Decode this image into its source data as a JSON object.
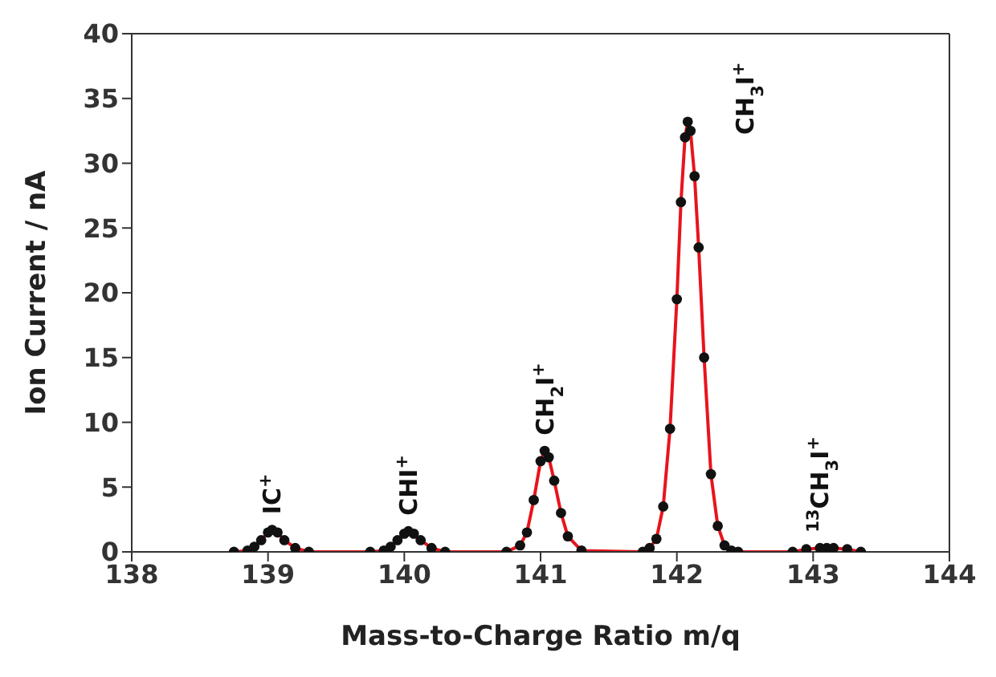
{
  "chart_data": {
    "type": "scatter",
    "xlabel": "Mass-to-Charge Ratio m/q",
    "ylabel": "Ion Current / nA",
    "xlim": [
      138,
      144
    ],
    "xticks": [
      138,
      139,
      140,
      141,
      142,
      143,
      144
    ],
    "ylim": [
      0,
      40
    ],
    "yticks": [
      0,
      5,
      10,
      15,
      20,
      25,
      30,
      35,
      40
    ],
    "series": [
      {
        "color": "#111111",
        "marker": "circle",
        "x": [
          138.75,
          138.85,
          138.9,
          138.95,
          139.0,
          139.03,
          139.07,
          139.12,
          139.2,
          139.3,
          139.75,
          139.85,
          139.9,
          139.95,
          140.0,
          140.03,
          140.07,
          140.12,
          140.2,
          140.3,
          140.75,
          140.85,
          140.9,
          140.95,
          141.0,
          141.03,
          141.06,
          141.1,
          141.15,
          141.2,
          141.3,
          141.75,
          141.8,
          141.85,
          141.9,
          141.95,
          142.0,
          142.03,
          142.06,
          142.08,
          142.1,
          142.13,
          142.16,
          142.2,
          142.25,
          142.3,
          142.35,
          142.4,
          142.45,
          142.85,
          142.95,
          143.05,
          143.1,
          143.15,
          143.25,
          143.35
        ],
        "values": [
          0,
          0.1,
          0.4,
          0.9,
          1.5,
          1.7,
          1.5,
          0.9,
          0.3,
          0,
          0,
          0.1,
          0.4,
          0.9,
          1.4,
          1.6,
          1.4,
          0.9,
          0.3,
          0,
          0,
          0.5,
          1.5,
          4,
          7,
          7.8,
          7.3,
          5.5,
          3,
          1.2,
          0.1,
          0,
          0.3,
          1,
          3.5,
          9.5,
          19.5,
          27,
          32,
          33.2,
          32.5,
          29,
          23.5,
          15,
          6,
          2,
          0.5,
          0.1,
          0,
          0,
          0.2,
          0.3,
          0.3,
          0.3,
          0.2,
          0
        ]
      },
      {
        "type": "line",
        "color": "#e8141c",
        "line_style": "solid",
        "x": [
          138.75,
          138.85,
          138.9,
          138.95,
          139.0,
          139.03,
          139.07,
          139.12,
          139.2,
          139.3,
          139.75,
          139.85,
          139.9,
          139.95,
          140.0,
          140.03,
          140.07,
          140.12,
          140.2,
          140.3,
          140.75,
          140.85,
          140.9,
          140.95,
          141.0,
          141.03,
          141.06,
          141.1,
          141.15,
          141.2,
          141.3,
          141.75,
          141.8,
          141.85,
          141.9,
          141.95,
          142.0,
          142.03,
          142.06,
          142.08,
          142.1,
          142.13,
          142.16,
          142.2,
          142.25,
          142.3,
          142.35,
          142.4,
          142.45,
          142.85,
          142.95,
          143.05,
          143.1,
          143.15,
          143.25,
          143.35
        ],
        "values": [
          0,
          0.1,
          0.4,
          0.9,
          1.5,
          1.7,
          1.5,
          0.9,
          0.3,
          0,
          0,
          0.1,
          0.4,
          0.9,
          1.4,
          1.6,
          1.4,
          0.9,
          0.3,
          0,
          0,
          0.5,
          1.5,
          4,
          7,
          7.8,
          7.3,
          5.5,
          3,
          1.2,
          0.1,
          0,
          0.3,
          1,
          3.5,
          9.5,
          19.5,
          27,
          32,
          33.2,
          32.5,
          29,
          23.5,
          15,
          6,
          2,
          0.5,
          0.1,
          0,
          0,
          0.2,
          0.3,
          0.3,
          0.3,
          0.2,
          0
        ]
      }
    ],
    "annotations": [
      "IC$^{+}$",
      "CHI$^{+}$",
      "CH$_{2}$I$^{+}$",
      "CH$_{3}$I$^{+}$",
      "$^{13}$CH$_{3}$I$^{+}$"
    ]
  }
}
